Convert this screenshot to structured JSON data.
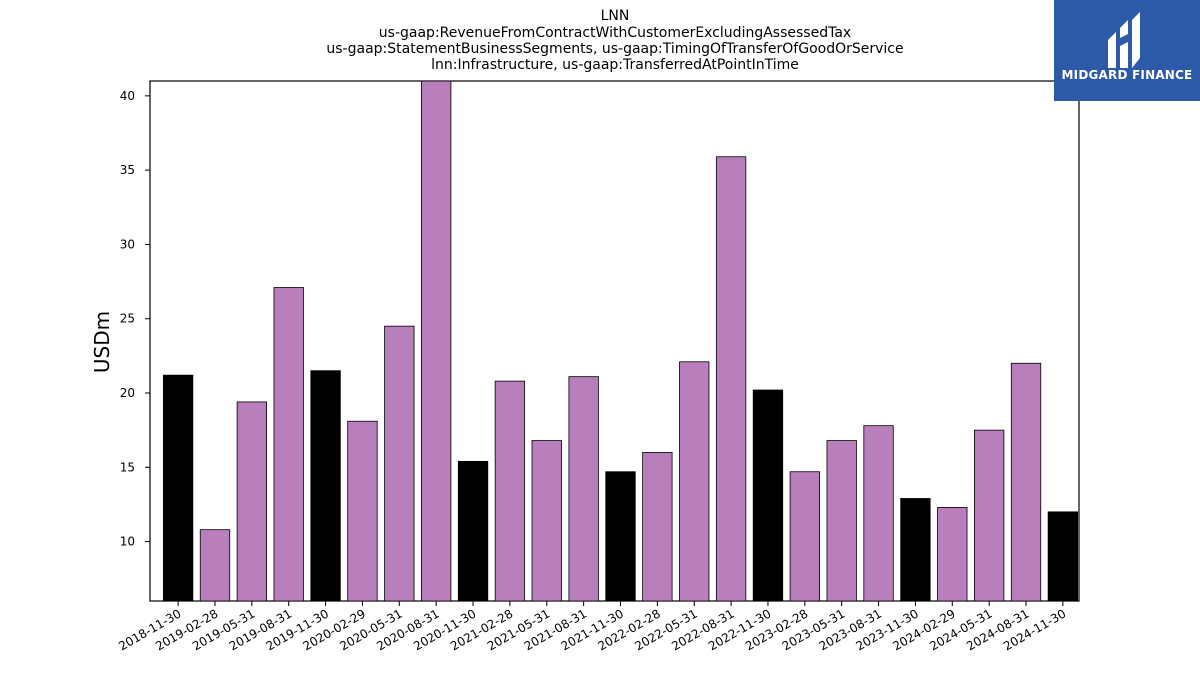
{
  "chart_data": {
    "type": "bar",
    "title_lines": [
      "LNN",
      "us-gaap:RevenueFromContractWithCustomerExcludingAssessedTax",
      "us-gaap:StatementBusinessSegments, us-gaap:TimingOfTransferOfGoodOrService",
      "lnn:Infrastructure, us-gaap:TransferredAtPointInTime"
    ],
    "ylabel": "USDm",
    "xlabel": "",
    "ylim": [
      6,
      41
    ],
    "yticks": [
      10,
      15,
      20,
      25,
      30,
      35,
      40
    ],
    "categories": [
      "2018-11-30",
      "2019-02-28",
      "2019-05-31",
      "2019-08-31",
      "2019-11-30",
      "2020-02-29",
      "2020-05-31",
      "2020-08-31",
      "2020-11-30",
      "2021-02-28",
      "2021-05-31",
      "2021-08-31",
      "2021-11-30",
      "2022-02-28",
      "2022-05-31",
      "2022-08-31",
      "2022-11-30",
      "2023-02-28",
      "2023-05-31",
      "2023-08-31",
      "2023-11-30",
      "2024-02-29",
      "2024-05-31",
      "2024-08-31",
      "2024-11-30"
    ],
    "values": [
      21.2,
      10.8,
      19.4,
      27.1,
      21.5,
      18.1,
      24.5,
      41.0,
      15.4,
      20.8,
      16.8,
      21.1,
      14.7,
      16.0,
      22.1,
      35.9,
      20.2,
      14.7,
      16.8,
      17.8,
      12.9,
      12.3,
      17.5,
      22.0,
      12.0
    ],
    "colors": {
      "fiscal_year_end": "#000000",
      "quarter": "#b97fbd",
      "edge": "#000000"
    },
    "highlight_categories": [
      "2018-11-30",
      "2019-11-30",
      "2020-11-30",
      "2021-11-30",
      "2022-11-30",
      "2023-11-30",
      "2024-11-30"
    ],
    "grid": false,
    "legend": "none"
  },
  "logo": {
    "text": "MIDGARD FINANCE",
    "background": "#2c5aa9",
    "icon": "midgard-logo-icon"
  }
}
